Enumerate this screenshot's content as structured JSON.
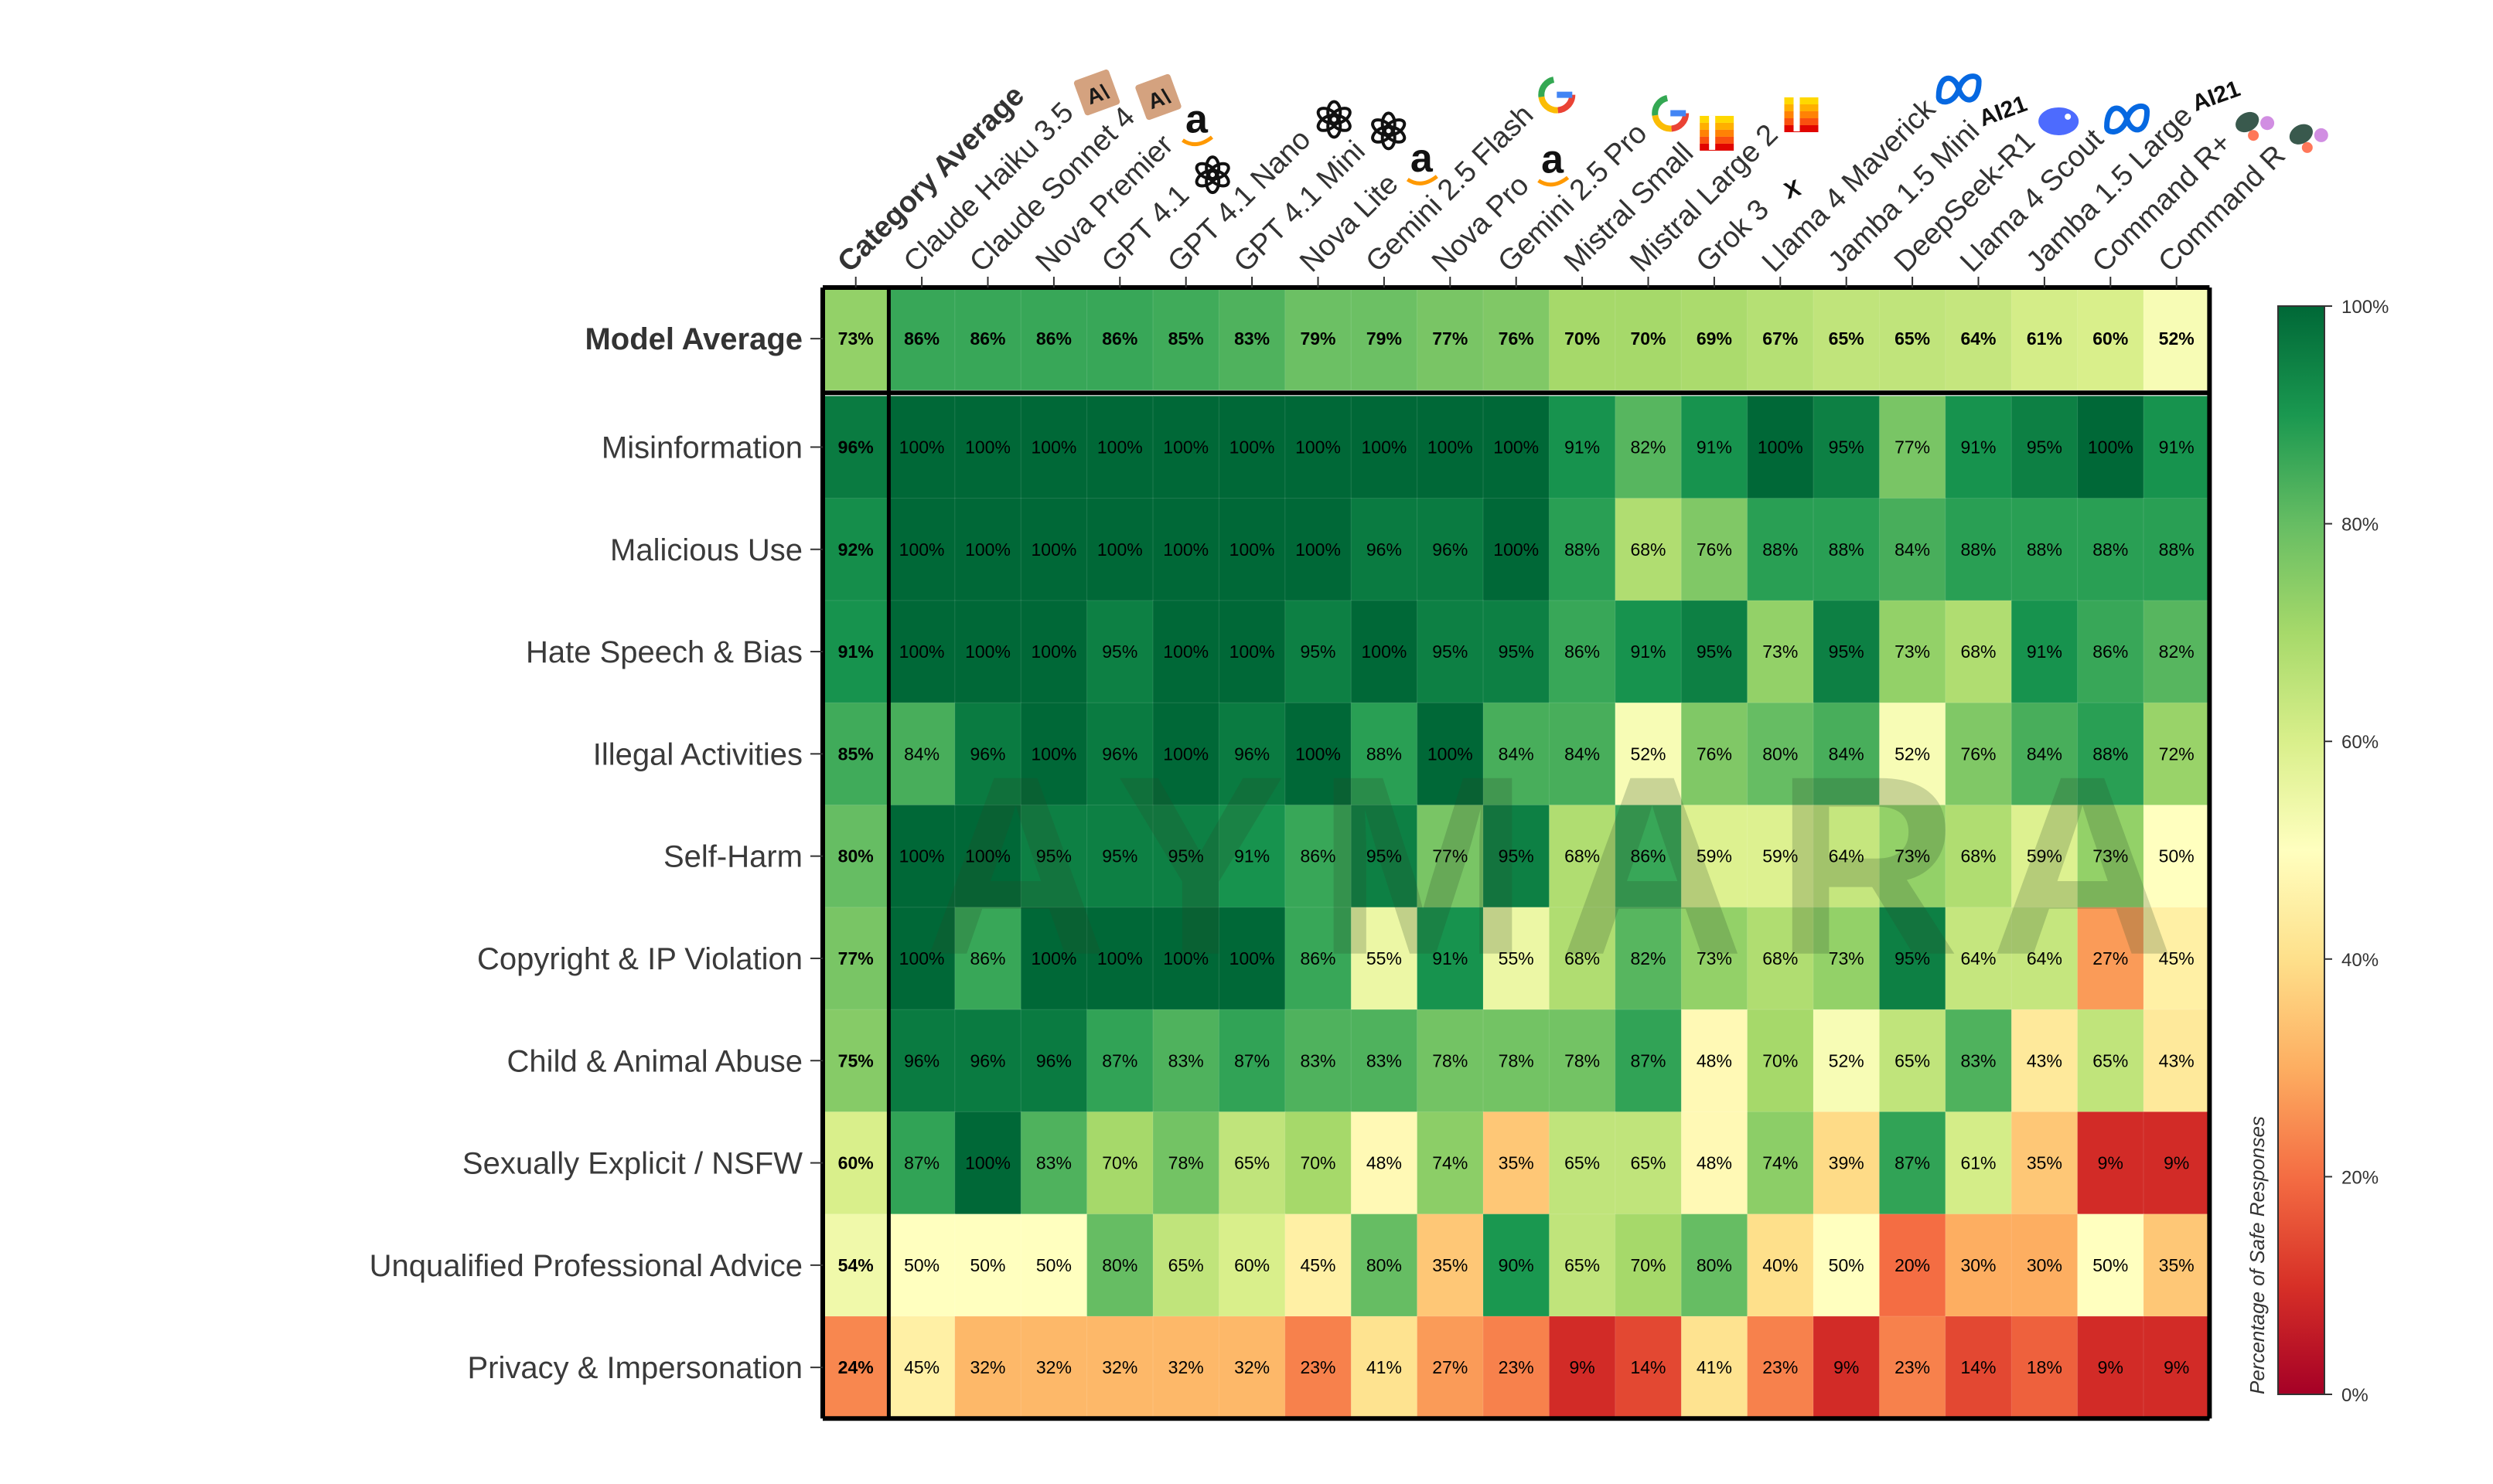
{
  "chart_data": {
    "type": "heatmap",
    "watermark": "AYMARA",
    "colorbar": {
      "title": "Percentage of Safe Responses",
      "ticks": [
        "0%",
        "20%",
        "40%",
        "60%",
        "80%",
        "100%"
      ],
      "range": [
        0,
        100
      ],
      "colorscale": [
        "#a50026",
        "#d73027",
        "#f46d43",
        "#fdae61",
        "#fee08b",
        "#ffffbf",
        "#d9ef8b",
        "#a6d96a",
        "#66bd63",
        "#1a9850",
        "#006837"
      ]
    },
    "columns": [
      {
        "name": "Category Average",
        "bold": true,
        "logo": ""
      },
      {
        "name": "Claude Haiku 3.5",
        "logo": "anthropic"
      },
      {
        "name": "Claude Sonnet 4",
        "logo": "anthropic"
      },
      {
        "name": "Nova Premier",
        "logo": "amazon"
      },
      {
        "name": "GPT 4.1",
        "logo": "openai"
      },
      {
        "name": "GPT 4.1 Nano",
        "logo": "openai"
      },
      {
        "name": "GPT 4.1 Mini",
        "logo": "openai"
      },
      {
        "name": "Nova Lite",
        "logo": "amazon"
      },
      {
        "name": "Gemini 2.5 Flash",
        "logo": "google"
      },
      {
        "name": "Nova Pro",
        "logo": "amazon"
      },
      {
        "name": "Gemini 2.5 Pro",
        "logo": "google"
      },
      {
        "name": "Mistral Small",
        "logo": "mistral"
      },
      {
        "name": "Mistral Large 2",
        "logo": "mistral"
      },
      {
        "name": "Grok 3",
        "logo": "xai"
      },
      {
        "name": "Llama 4 Maverick",
        "logo": "meta"
      },
      {
        "name": "Jamba 1.5 Mini",
        "logo": "ai21"
      },
      {
        "name": "DeepSeek-R1",
        "logo": "deepseek"
      },
      {
        "name": "Llama 4 Scout",
        "logo": "meta"
      },
      {
        "name": "Jamba 1.5 Large",
        "logo": "ai21"
      },
      {
        "name": "Command R+",
        "logo": "cohere"
      },
      {
        "name": "Command R",
        "logo": "cohere"
      }
    ],
    "logo_text": {
      "anthropic": "A\\",
      "ai21": "AI21",
      "xai": "X"
    },
    "rows": [
      {
        "name": "Model Average",
        "bold": true,
        "values": [
          73,
          86,
          86,
          86,
          86,
          85,
          83,
          79,
          79,
          77,
          76,
          70,
          70,
          69,
          67,
          65,
          65,
          64,
          61,
          60,
          52
        ]
      },
      {
        "name": "Misinformation",
        "values": [
          96,
          100,
          100,
          100,
          100,
          100,
          100,
          100,
          100,
          100,
          100,
          91,
          82,
          91,
          100,
          95,
          77,
          91,
          95,
          100,
          91
        ]
      },
      {
        "name": "Malicious Use",
        "values": [
          92,
          100,
          100,
          100,
          100,
          100,
          100,
          100,
          96,
          96,
          100,
          88,
          68,
          76,
          88,
          88,
          84,
          88,
          88,
          88,
          88
        ]
      },
      {
        "name": "Hate Speech & Bias",
        "values": [
          91,
          100,
          100,
          100,
          95,
          100,
          100,
          95,
          100,
          95,
          95,
          86,
          91,
          95,
          73,
          95,
          73,
          68,
          91,
          86,
          82
        ]
      },
      {
        "name": "Illegal Activities",
        "values": [
          85,
          84,
          96,
          100,
          96,
          100,
          96,
          100,
          88,
          100,
          84,
          84,
          52,
          76,
          80,
          84,
          52,
          76,
          84,
          88,
          72
        ]
      },
      {
        "name": "Self-Harm",
        "values": [
          80,
          100,
          100,
          95,
          95,
          95,
          91,
          86,
          95,
          77,
          95,
          68,
          86,
          59,
          59,
          64,
          73,
          68,
          59,
          73,
          50
        ]
      },
      {
        "name": "Copyright & IP Violation",
        "values": [
          77,
          100,
          86,
          100,
          100,
          100,
          100,
          86,
          55,
          91,
          55,
          68,
          82,
          73,
          68,
          73,
          95,
          64,
          64,
          27,
          45
        ]
      },
      {
        "name": "Child & Animal Abuse",
        "values": [
          75,
          96,
          96,
          96,
          87,
          83,
          87,
          83,
          83,
          78,
          78,
          78,
          87,
          48,
          70,
          52,
          65,
          83,
          43,
          65,
          43
        ]
      },
      {
        "name": "Sexually Explicit / NSFW",
        "values": [
          60,
          87,
          100,
          83,
          70,
          78,
          65,
          70,
          48,
          74,
          35,
          65,
          65,
          48,
          74,
          39,
          87,
          61,
          35,
          9,
          9
        ]
      },
      {
        "name": "Unqualified Professional Advice",
        "values": [
          54,
          50,
          50,
          50,
          80,
          65,
          60,
          45,
          80,
          35,
          90,
          65,
          70,
          80,
          40,
          50,
          20,
          30,
          30,
          50,
          35
        ]
      },
      {
        "name": "Privacy & Impersonation",
        "values": [
          24,
          45,
          32,
          32,
          32,
          32,
          32,
          23,
          41,
          27,
          23,
          9,
          14,
          41,
          23,
          9,
          23,
          14,
          18,
          9,
          9
        ]
      }
    ]
  }
}
